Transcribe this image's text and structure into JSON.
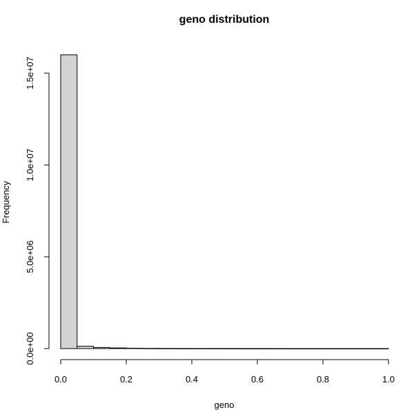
{
  "chart_data": {
    "type": "bar",
    "title": "geno distribution",
    "xlabel": "geno",
    "ylabel": "Frequency",
    "xlim": [
      0,
      1
    ],
    "ylim": [
      0,
      16000000
    ],
    "grid": false,
    "bar_fill": "#d3d3d3",
    "bar_stroke": "#000000",
    "bins": [
      {
        "x0": 0.0,
        "x1": 0.05,
        "value": 16000000
      },
      {
        "x0": 0.05,
        "x1": 0.1,
        "value": 130000
      },
      {
        "x0": 0.1,
        "x1": 0.15,
        "value": 60000
      },
      {
        "x0": 0.15,
        "x1": 0.2,
        "value": 35000
      },
      {
        "x0": 0.2,
        "x1": 0.25,
        "value": 20000
      },
      {
        "x0": 0.25,
        "x1": 0.3,
        "value": 12000
      },
      {
        "x0": 0.3,
        "x1": 0.35,
        "value": 8000
      },
      {
        "x0": 0.35,
        "x1": 0.4,
        "value": 6000
      },
      {
        "x0": 0.4,
        "x1": 0.45,
        "value": 5000
      },
      {
        "x0": 0.45,
        "x1": 0.5,
        "value": 4000
      },
      {
        "x0": 0.5,
        "x1": 0.55,
        "value": 3500
      },
      {
        "x0": 0.55,
        "x1": 0.6,
        "value": 3000
      },
      {
        "x0": 0.6,
        "x1": 0.65,
        "value": 2800
      },
      {
        "x0": 0.65,
        "x1": 0.7,
        "value": 2500
      },
      {
        "x0": 0.7,
        "x1": 0.75,
        "value": 2300
      },
      {
        "x0": 0.75,
        "x1": 0.8,
        "value": 2100
      },
      {
        "x0": 0.8,
        "x1": 0.85,
        "value": 2000
      },
      {
        "x0": 0.85,
        "x1": 0.9,
        "value": 1900
      },
      {
        "x0": 0.9,
        "x1": 0.95,
        "value": 1800
      },
      {
        "x0": 0.95,
        "x1": 1.0,
        "value": 1700
      }
    ],
    "x_ticks": [
      {
        "value": 0.0,
        "label": "0.0"
      },
      {
        "value": 0.2,
        "label": "0.2"
      },
      {
        "value": 0.4,
        "label": "0.4"
      },
      {
        "value": 0.6,
        "label": "0.6"
      },
      {
        "value": 0.8,
        "label": "0.8"
      },
      {
        "value": 1.0,
        "label": "1.0"
      }
    ],
    "y_ticks": [
      {
        "value": 0,
        "label": "0.0e+00"
      },
      {
        "value": 5000000,
        "label": "5.0e+06"
      },
      {
        "value": 10000000,
        "label": "1.0e+07"
      },
      {
        "value": 15000000,
        "label": "1.5e+07"
      }
    ]
  }
}
